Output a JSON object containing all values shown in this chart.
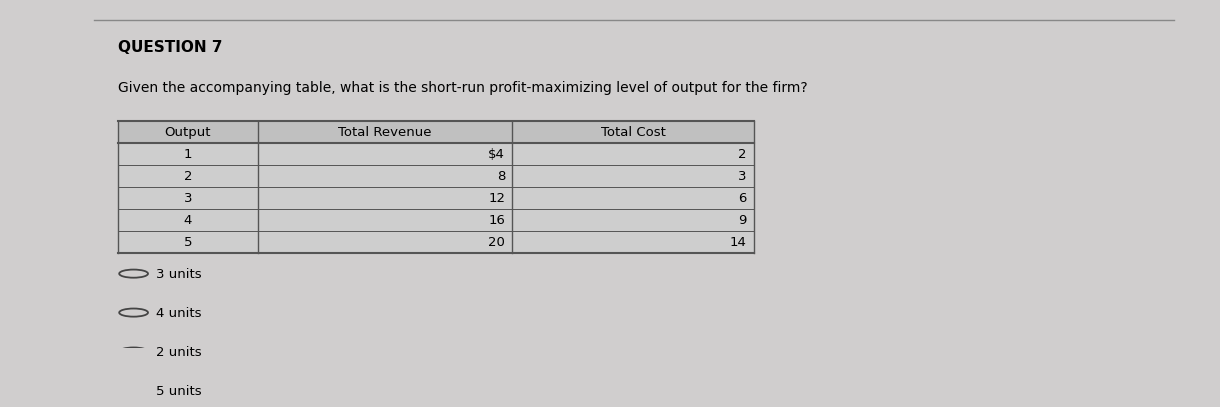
{
  "question_label": "QUESTION 7",
  "question_text": "Given the accompanying table, what is the short-run profit-maximizing level of output for the firm?",
  "table_headers": [
    "Output",
    "Total Revenue",
    "Total Cost"
  ],
  "table_data": [
    [
      "1",
      "$4",
      "2"
    ],
    [
      "2",
      "8",
      "3"
    ],
    [
      "3",
      "12",
      "6"
    ],
    [
      "4",
      "16",
      "9"
    ],
    [
      "5",
      "20",
      "14"
    ]
  ],
  "answer_choices": [
    "3 units",
    "4 units",
    "2 units",
    "5 units"
  ],
  "bg_color": "#d0cece",
  "text_color": "#000000"
}
